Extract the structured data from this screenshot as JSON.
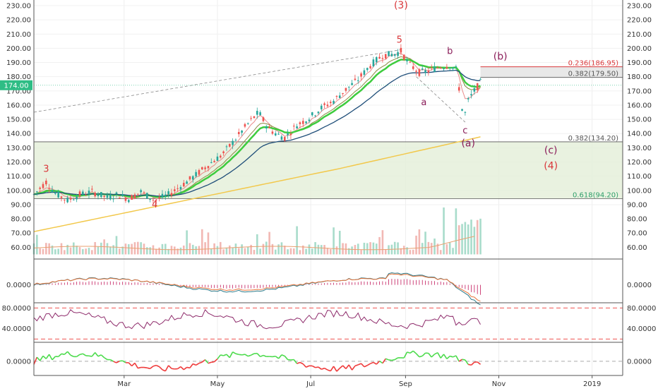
{
  "chart_data": {
    "type": "candlestick",
    "price_axis": {
      "ylim": [
        50,
        230
      ],
      "ticks": [
        "60.00",
        "70.00",
        "80.00",
        "90.00",
        "100.00",
        "110.00",
        "120.00",
        "130.00",
        "140.00",
        "150.00",
        "160.00",
        "170.00",
        "180.00",
        "190.00",
        "200.00",
        "210.00",
        "220.00",
        "230.00"
      ],
      "tick_values": [
        60,
        70,
        80,
        90,
        100,
        110,
        120,
        130,
        140,
        150,
        160,
        170,
        180,
        190,
        200,
        210,
        220,
        230
      ],
      "last_price": "174.00",
      "last_value": 174
    },
    "x_axis": {
      "labels": [
        "Mar",
        "May",
        "Jul",
        "Sep",
        "Nov",
        "2019"
      ],
      "label_days": [
        59,
        120,
        181,
        243,
        304,
        365
      ],
      "xlim_days": [
        0,
        385
      ]
    },
    "fib_levels": [
      {
        "label": "0.236(186.95)",
        "value": 186.95
      },
      {
        "label": "0.382(179.50)",
        "value": 179.5
      },
      {
        "label": "0.382(134.20)",
        "value": 134.2
      },
      {
        "label": "0.618(94.20)",
        "value": 94.2
      }
    ],
    "wave_labels": [
      {
        "text": "3",
        "day": 8,
        "price": 113,
        "color": "#d9373a"
      },
      {
        "text": "4",
        "day": 79,
        "price": 88,
        "color": "#d9373a"
      },
      {
        "text": "5",
        "day": 239,
        "price": 204,
        "color": "#d9373a"
      },
      {
        "text": "(3)",
        "day": 240,
        "price": 228,
        "color": "#d9373a"
      },
      {
        "text": "a",
        "day": 255,
        "price": 160,
        "color": "#8b1e5a"
      },
      {
        "text": "b",
        "day": 272,
        "price": 196,
        "color": "#8b1e5a"
      },
      {
        "text": "c",
        "day": 282,
        "price": 140,
        "color": "#8b1e5a"
      },
      {
        "text": "(a)",
        "day": 284,
        "price": 131,
        "color": "#8b1e5a"
      },
      {
        "text": "(b)",
        "day": 305,
        "price": 192,
        "color": "#8b1e5a"
      },
      {
        "text": "(c)",
        "day": 338,
        "price": 126,
        "color": "#8b1e5a"
      },
      {
        "text": "(4)",
        "day": 338,
        "price": 115,
        "color": "#d9373a"
      }
    ],
    "volume_axis": {
      "ticks": [
        "60.00",
        "70.00",
        "80.00",
        "90.00"
      ]
    },
    "indicator1": {
      "ticks": [
        "0.0000"
      ],
      "tick_values": [
        0
      ],
      "ylim": [
        -8,
        12
      ]
    },
    "indicator2": {
      "ticks": [
        "80.0000",
        "40.0000"
      ],
      "tick_values": [
        80,
        40
      ],
      "ylim": [
        15,
        90
      ],
      "bands": [
        80,
        20
      ]
    },
    "indicator3": {
      "ticks": [
        "0.0000"
      ],
      "tick_values": [
        0
      ],
      "ylim": [
        -3,
        4
      ]
    },
    "colors": {
      "up": "#26a69a",
      "down": "#ef5350",
      "fib_zone": "#e3efd8",
      "ema_fast": "#3ecc3e",
      "ema_mid": "#1f4e79",
      "sma_long": "#f2c84b",
      "price_tag": "#2ebd85",
      "fib_text": "#2e9e6a"
    }
  }
}
